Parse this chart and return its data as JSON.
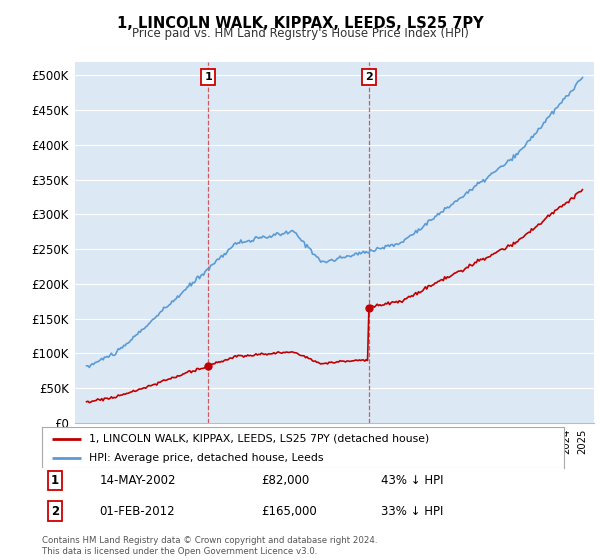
{
  "title": "1, LINCOLN WALK, KIPPAX, LEEDS, LS25 7PY",
  "subtitle": "Price paid vs. HM Land Registry's House Price Index (HPI)",
  "background_color": "#dce9f5",
  "plot_bg_color": "#dce9f5",
  "ylim": [
    0,
    520000
  ],
  "yticks": [
    0,
    50000,
    100000,
    150000,
    200000,
    250000,
    300000,
    350000,
    400000,
    450000,
    500000
  ],
  "ytick_labels": [
    "£0",
    "£50K",
    "£100K",
    "£150K",
    "£200K",
    "£250K",
    "£300K",
    "£350K",
    "£400K",
    "£450K",
    "£500K"
  ],
  "hpi_color": "#5b9bd5",
  "price_color": "#c00000",
  "sale1_year": 2002.37,
  "sale1_price": 82000,
  "sale1_date": "14-MAY-2002",
  "sale1_label": "43% ↓ HPI",
  "sale2_year": 2012.08,
  "sale2_price": 165000,
  "sale2_date": "01-FEB-2012",
  "sale2_label": "33% ↓ HPI",
  "legend_label_price": "1, LINCOLN WALK, KIPPAX, LEEDS, LS25 7PY (detached house)",
  "legend_label_hpi": "HPI: Average price, detached house, Leeds",
  "footer": "Contains HM Land Registry data © Crown copyright and database right 2024.\nThis data is licensed under the Open Government Licence v3.0.",
  "xstart": 1995,
  "xend": 2025
}
